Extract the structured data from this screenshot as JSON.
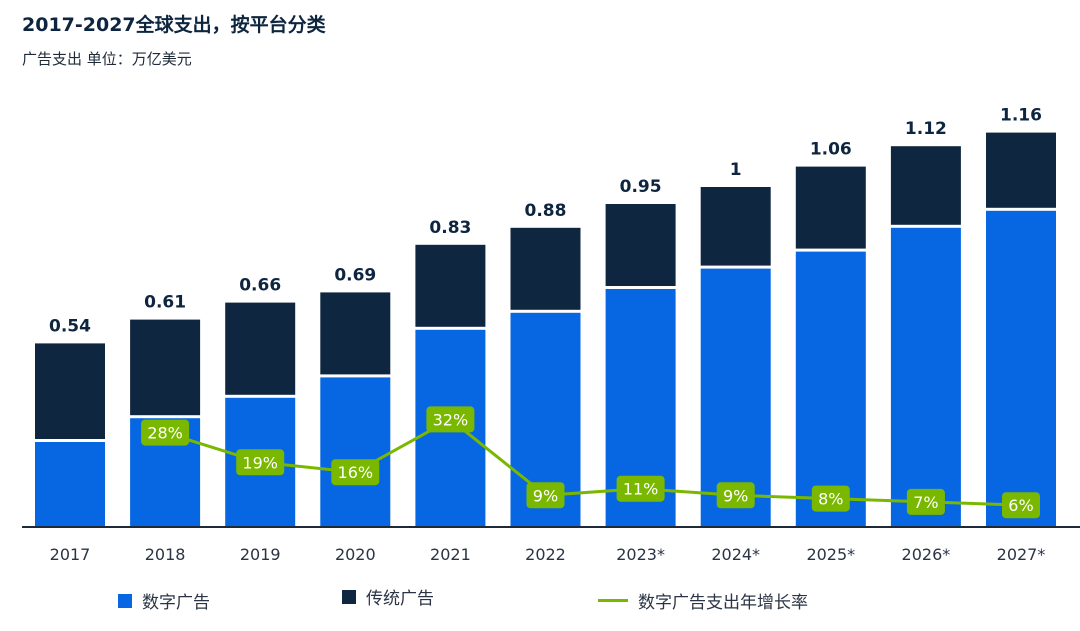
{
  "title": "2017-2027全球支出，按平台分类",
  "subtitle": "广告支出 单位：万亿美元",
  "chart_data": {
    "type": "bar",
    "stacked": true,
    "title": "2017-2027全球支出，按平台分类",
    "subtitle": "广告支出 单位：万亿美元",
    "categories": [
      "2017",
      "2018",
      "2019",
      "2020",
      "2021",
      "2022",
      "2023*",
      "2024*",
      "2025*",
      "2026*",
      "2027*"
    ],
    "totals": [
      0.54,
      0.61,
      0.66,
      0.69,
      0.83,
      0.88,
      0.95,
      1,
      1.06,
      1.12,
      1.16
    ],
    "series": [
      {
        "name": "数字广告",
        "color": "#0767e3",
        "values": [
          0.25,
          0.32,
          0.38,
          0.44,
          0.58,
          0.63,
          0.7,
          0.76,
          0.81,
          0.88,
          0.93
        ]
      },
      {
        "name": "传统广告",
        "color": "#0e2640",
        "values": [
          0.29,
          0.29,
          0.28,
          0.25,
          0.25,
          0.25,
          0.25,
          0.24,
          0.25,
          0.24,
          0.23
        ]
      }
    ],
    "line_series": {
      "name": "数字广告支出年增长率",
      "color": "#7ab800",
      "categories": [
        "2018",
        "2019",
        "2020",
        "2021",
        "2022",
        "2023*",
        "2024*",
        "2025*",
        "2026*",
        "2027*"
      ],
      "values": [
        28,
        19,
        16,
        32,
        9,
        11,
        9,
        8,
        7,
        6
      ],
      "labels": [
        "28%",
        "19%",
        "16%",
        "32%",
        "9%",
        "11%",
        "9%",
        "8%",
        "7%",
        "6%"
      ]
    },
    "ylim": [
      0,
      1.2
    ],
    "grid": false,
    "legend": "bottom"
  }
}
